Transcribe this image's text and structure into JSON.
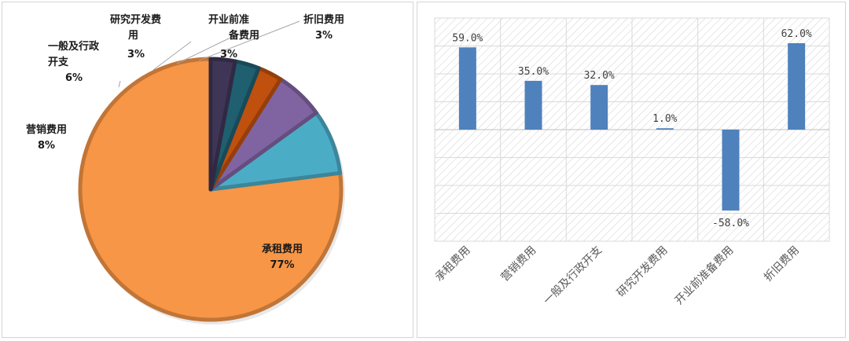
{
  "chart_data": [
    {
      "type": "pie",
      "title": "",
      "slices": [
        {
          "label": "承租费用",
          "value": 77,
          "text": "77%",
          "color": "#F79646"
        },
        {
          "label": "营销费用",
          "value": 8,
          "text": "8%",
          "color": "#4BACC6"
        },
        {
          "label": "一般及行政开支",
          "value": 6,
          "text": "6%",
          "color": "#8064A2"
        },
        {
          "label": "研究开发费用",
          "value": 3,
          "text": "3%",
          "color": "#C0500E"
        },
        {
          "label": "开业前准备费用",
          "value": 3,
          "text": "3%",
          "color": "#1F5F6F"
        },
        {
          "label": "折旧费用",
          "value": 3,
          "text": "3%",
          "color": "#3F3556"
        }
      ],
      "legend": "none"
    },
    {
      "type": "bar",
      "title": "",
      "categories": [
        "承租费用",
        "营销费用",
        "一般及行政开支",
        "研究开发费用",
        "开业前准备费用",
        "折旧费用"
      ],
      "values": [
        59.0,
        35.0,
        32.0,
        1.0,
        -58.0,
        62.0
      ],
      "value_labels": [
        "59.0%",
        "35.0%",
        "32.0%",
        "1.0%",
        "-58.0%",
        "62.0%"
      ],
      "ylim": [
        -80,
        80
      ],
      "bar_color": "#4F81BD",
      "grid": true,
      "background": "hatched"
    }
  ]
}
